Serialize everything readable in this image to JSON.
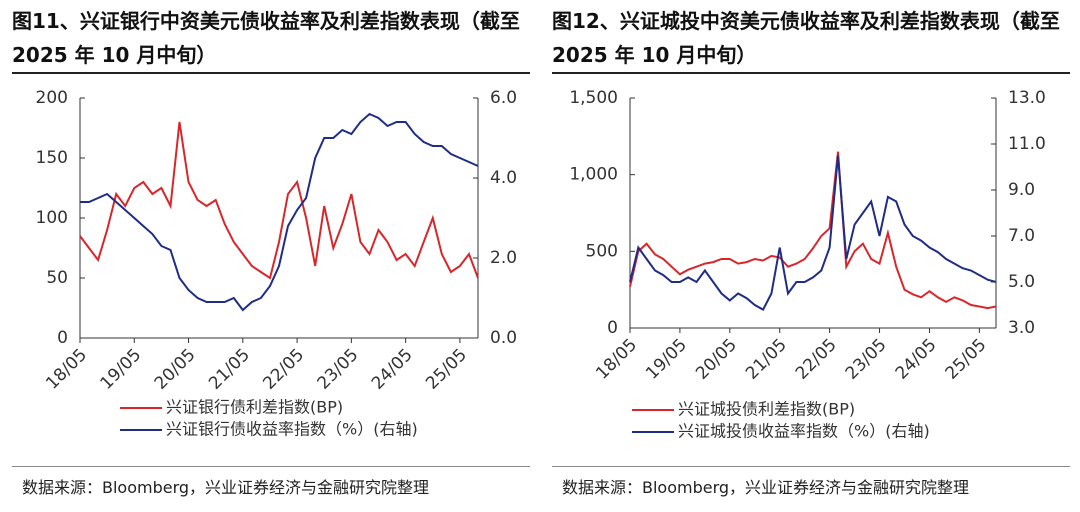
{
  "chart_data": [
    {
      "type": "line",
      "title": "图11、兴证银行中资美元债收益率及利差指数表现（截至 2025 年 10 月中旬）",
      "source": "数据来源：Bloomberg，兴业证券经济与金融研究院整理",
      "categories": [
        "18/05",
        null,
        null,
        null,
        null,
        null,
        "19/05",
        null,
        null,
        null,
        null,
        null,
        "20/05",
        null,
        null,
        null,
        null,
        null,
        "21/05",
        null,
        null,
        null,
        null,
        null,
        "22/05",
        null,
        null,
        null,
        null,
        null,
        "23/05",
        null,
        null,
        null,
        null,
        null,
        "24/05",
        null,
        null,
        null,
        null,
        null,
        "25/05",
        null,
        null
      ],
      "ylim": [
        0,
        200
      ],
      "yticks": [
        0,
        50,
        100,
        150,
        200
      ],
      "y2lim": [
        0,
        6
      ],
      "y2ticks": [
        {
          "value": 0,
          "label": "0.0"
        },
        {
          "value": 2,
          "label": "2.0"
        },
        {
          "value": 4,
          "label": "4.0"
        },
        {
          "value": 6,
          "label": "6.0"
        }
      ],
      "series": [
        {
          "name": "兴证银行债利差指数(BP)",
          "color": "#d9262b",
          "values": [
            85,
            75,
            65,
            90,
            120,
            110,
            125,
            130,
            120,
            125,
            110,
            180,
            130,
            115,
            110,
            115,
            95,
            80,
            70,
            60,
            55,
            50,
            80,
            120,
            130,
            100,
            60,
            110,
            75,
            95,
            120,
            80,
            70,
            90,
            80,
            65,
            70,
            60,
            80,
            100,
            70,
            55,
            60,
            70,
            50
          ]
        },
        {
          "name": "兴证银行债收益率指数（%）(右轴)",
          "color": "#1f2d86",
          "axis": "y2",
          "values": [
            3.4,
            3.4,
            3.5,
            3.6,
            3.4,
            3.2,
            3.0,
            2.8,
            2.6,
            2.3,
            2.2,
            1.5,
            1.2,
            1.0,
            0.9,
            0.9,
            0.9,
            1.0,
            0.7,
            0.9,
            1.0,
            1.3,
            1.8,
            2.8,
            3.2,
            3.5,
            4.5,
            5.0,
            5.0,
            5.2,
            5.1,
            5.4,
            5.6,
            5.5,
            5.3,
            5.4,
            5.4,
            5.1,
            4.9,
            4.8,
            4.8,
            4.6,
            4.5,
            4.4,
            4.3
          ]
        }
      ]
    },
    {
      "type": "line",
      "title": "图12、兴证城投中资美元债收益率及利差指数表现（截至 2025 年 10 月中旬）",
      "source": "数据来源：Bloomberg，兴业证券经济与金融研究院整理",
      "categories": [
        "18/05",
        null,
        null,
        null,
        null,
        null,
        "19/05",
        null,
        null,
        null,
        null,
        null,
        "20/05",
        null,
        null,
        null,
        null,
        null,
        "21/05",
        null,
        null,
        null,
        null,
        null,
        "22/05",
        null,
        null,
        null,
        null,
        null,
        "23/05",
        null,
        null,
        null,
        null,
        null,
        "24/05",
        null,
        null,
        null,
        null,
        null,
        "25/05",
        null,
        null
      ],
      "ylim": [
        0,
        1500
      ],
      "yticks": [
        0,
        500,
        {
          "value": 1000,
          "label": "1,000"
        },
        {
          "value": 1500,
          "label": "1,500"
        }
      ],
      "y2lim": [
        3,
        13
      ],
      "y2ticks": [
        {
          "value": 3,
          "label": "3.0"
        },
        {
          "value": 5,
          "label": "5.0"
        },
        {
          "value": 7,
          "label": "7.0"
        },
        {
          "value": 9,
          "label": "9.0"
        },
        {
          "value": 11,
          "label": "11.0"
        },
        {
          "value": 13,
          "label": "13.0"
        }
      ],
      "series": [
        {
          "name": "兴证城投债利差指数(BP)",
          "color": "#d9262b",
          "values": [
            270,
            500,
            550,
            480,
            450,
            400,
            350,
            380,
            400,
            420,
            430,
            450,
            450,
            420,
            430,
            450,
            440,
            470,
            460,
            400,
            420,
            450,
            520,
            600,
            650,
            1150,
            400,
            500,
            550,
            450,
            420,
            620,
            400,
            250,
            220,
            200,
            240,
            200,
            170,
            200,
            180,
            150,
            140,
            130,
            140
          ]
        },
        {
          "name": "兴证城投债收益率指数（%）(右轴)",
          "color": "#1f2d86",
          "axis": "y2",
          "values": [
            5.0,
            6.5,
            6.0,
            5.5,
            5.3,
            5.0,
            5.0,
            5.2,
            5.0,
            5.5,
            5.0,
            4.5,
            4.2,
            4.5,
            4.3,
            4.0,
            3.8,
            4.5,
            6.5,
            4.5,
            5.0,
            5.0,
            5.2,
            5.5,
            6.5,
            10.5,
            6.0,
            7.5,
            8.0,
            8.5,
            7.0,
            8.7,
            8.5,
            7.5,
            7.0,
            6.8,
            6.5,
            6.3,
            6.0,
            5.8,
            5.6,
            5.5,
            5.3,
            5.1,
            5.0
          ]
        }
      ]
    }
  ]
}
